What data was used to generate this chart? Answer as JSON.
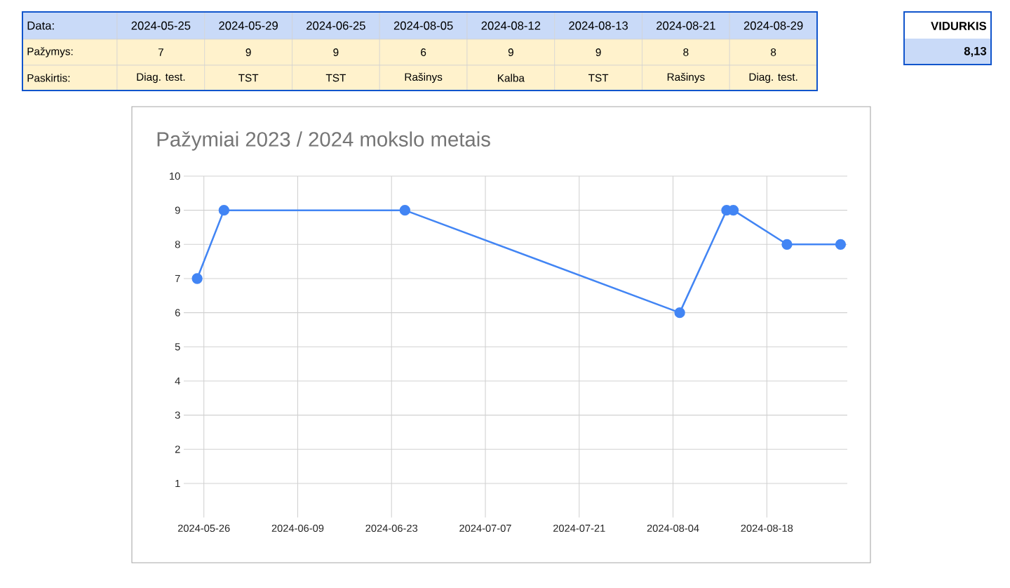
{
  "chart_data": {
    "type": "line",
    "title": "Pažymiai 2023 / 2024 mokslo metais",
    "x": [
      "2024-05-25",
      "2024-05-29",
      "2024-06-25",
      "2024-08-05",
      "2024-08-12",
      "2024-08-13",
      "2024-08-21",
      "2024-08-29"
    ],
    "values": [
      7,
      9,
      9,
      6,
      9,
      9,
      8,
      8
    ],
    "color": "#4285f4",
    "marker": "circle",
    "line_style": "solid",
    "grid": true,
    "xlim": [
      "2024-05-23",
      "2024-08-30"
    ],
    "xticks": [
      "2024-05-26",
      "2024-06-09",
      "2024-06-23",
      "2024-07-07",
      "2024-07-21",
      "2024-08-04",
      "2024-08-18"
    ],
    "ylim": [
      0,
      10
    ],
    "yticks": [
      1,
      2,
      3,
      4,
      5,
      6,
      7,
      8,
      9,
      10
    ],
    "annotations": [
      "Data:",
      "2024-05-25",
      "2024-05-29",
      "2024-06-25",
      "2024-08-05",
      "2024-08-12",
      "2024-08-13",
      "2024-08-21",
      "2024-08-29",
      "Pažymys:",
      "7",
      "9",
      "9",
      "6",
      "9",
      "9",
      "8",
      "8",
      "Paskirtis:",
      "Diag. test.",
      "TST",
      "TST",
      "Rašinys",
      "Kalba",
      "TST",
      "Rašinys",
      "Diag. test.",
      "VIDURKIS",
      "8,13"
    ]
  }
}
